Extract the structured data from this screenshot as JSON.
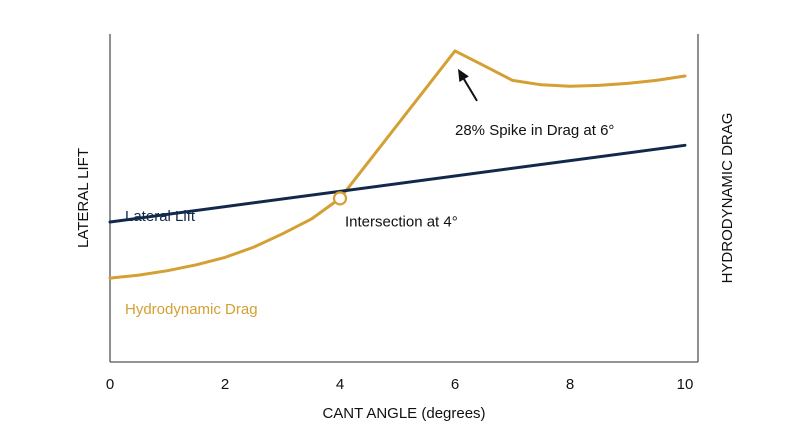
{
  "chart_data": {
    "type": "line",
    "title": "",
    "xlabel": "CANT ANGLE (degrees)",
    "ylabel": "LATERAL LIFT",
    "y2label": "HYDRODYNAMIC DRAG",
    "xlim": [
      0,
      10
    ],
    "ylim": [
      0,
      100
    ],
    "xticks": [
      "0",
      "2",
      "4",
      "6",
      "8",
      "10"
    ],
    "grid": false,
    "legend": "none",
    "series": [
      {
        "name": "Lateral Lift",
        "color": "#13294b",
        "x": [
          0,
          10
        ],
        "y": [
          40,
          66
        ]
      },
      {
        "name": "Hydrodynamic Drag",
        "color": "#d4a033",
        "x": [
          0,
          0.5,
          1,
          1.5,
          2,
          2.5,
          3,
          3.5,
          4,
          6,
          6.5,
          7,
          7.5,
          8,
          8.5,
          9,
          9.5,
          10
        ],
        "y": [
          21,
          22,
          23.5,
          25.5,
          28,
          31.5,
          36,
          41,
          48,
          98,
          93,
          88,
          86.5,
          86,
          86.3,
          87,
          88,
          89.5
        ]
      }
    ],
    "annotations": [
      {
        "id": "intersection",
        "text": "Intersection at 4°",
        "x": 4,
        "y": 48
      },
      {
        "id": "spike",
        "text": "28% Spike in Drag at 6°",
        "x": 6,
        "y": 98
      }
    ],
    "colors": {
      "axis": "#555555",
      "text": "#111111",
      "marker_fill": "#ffffff"
    }
  }
}
